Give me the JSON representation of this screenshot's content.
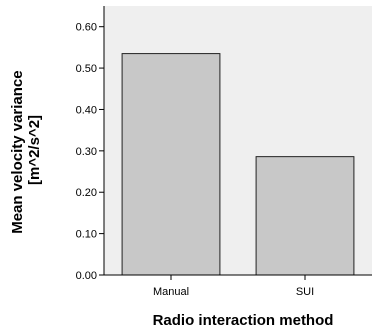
{
  "chart_data": {
    "type": "bar",
    "categories": [
      "Manual",
      "SUI"
    ],
    "values": [
      0.535,
      0.286
    ],
    "xlabel": "Radio interaction method",
    "ylabel_lines": [
      "Mean velocity variance",
      "[m^2/s^2]"
    ],
    "ylim": [
      0,
      0.65
    ],
    "yticks": [
      "0.00",
      "0.10",
      "0.20",
      "0.30",
      "0.40",
      "0.50",
      "0.60"
    ],
    "grid": false,
    "colors": {
      "plot_background": "#efefef",
      "bar_fill": "#c8c8c8",
      "bar_stroke": "#222222"
    }
  }
}
